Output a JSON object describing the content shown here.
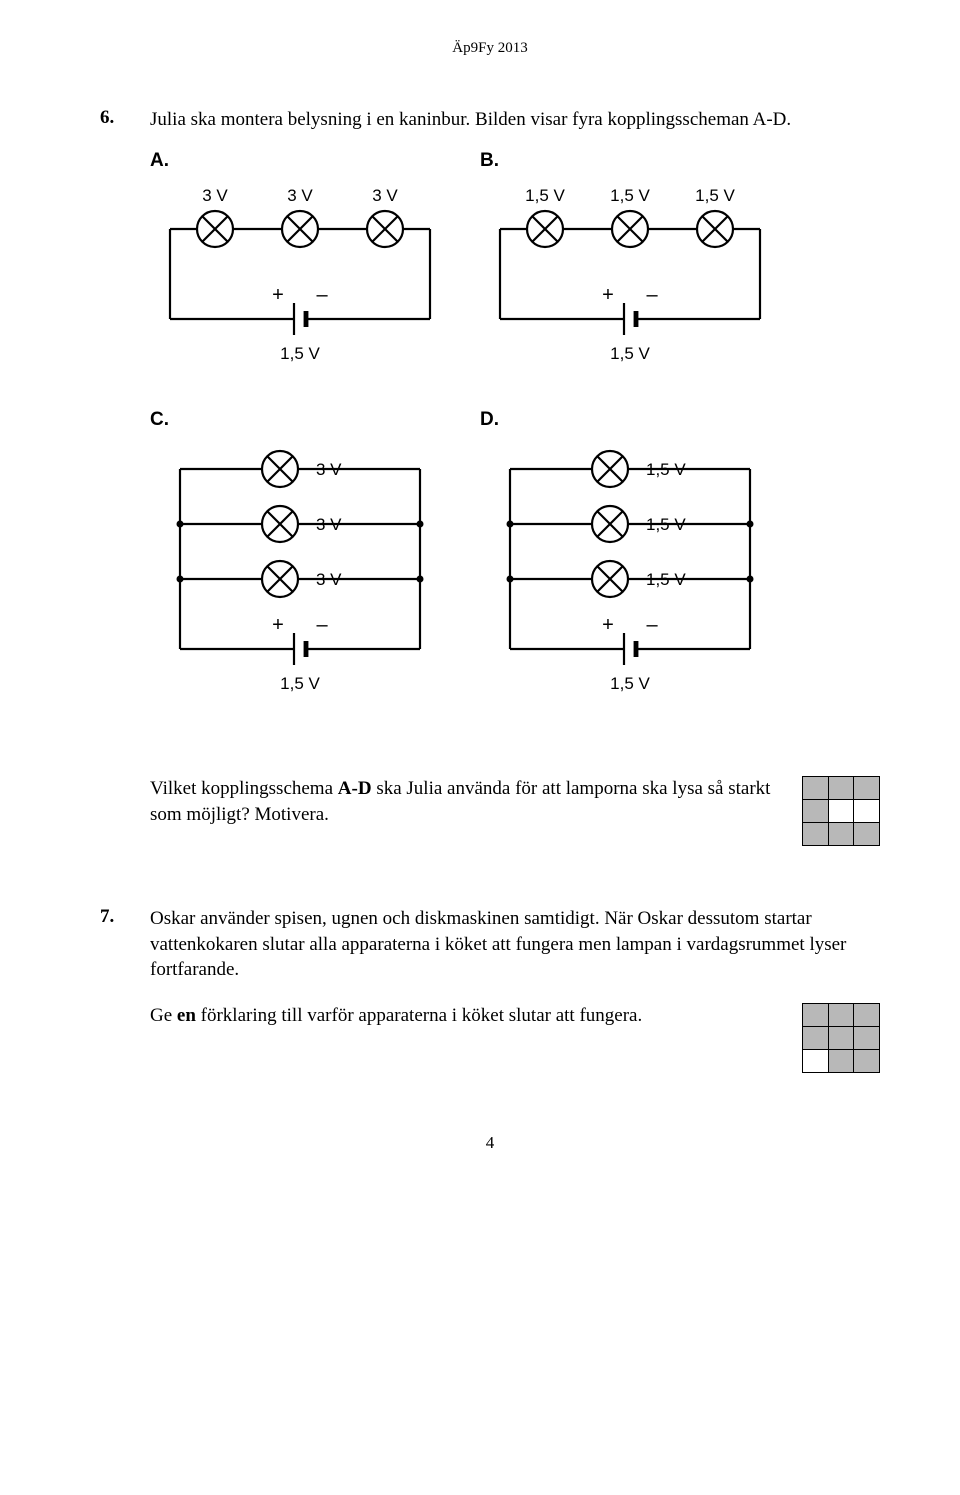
{
  "header": "Äp9Fy 2013",
  "page_number": "4",
  "q6": {
    "number": "6.",
    "intro": "Julia ska montera belysning i en kaninbur. Bilden visar fyra kopplingsscheman A-D.",
    "question_part1": "Vilket kopplingsschema ",
    "question_bold": "A-D",
    "question_part2": " ska Julia använda för att lamporna ska lysa så starkt som möjligt? Motivera.",
    "circuits": {
      "A": {
        "label": "A.",
        "lamp_values": [
          "3 V",
          "3 V",
          "3 V"
        ],
        "battery": "1,5 V"
      },
      "B": {
        "label": "B.",
        "lamp_values": [
          "1,5 V",
          "1,5 V",
          "1,5 V"
        ],
        "battery": "1,5 V"
      },
      "C": {
        "label": "C.",
        "lamp_values": [
          "3 V",
          "3 V",
          "3 V"
        ],
        "battery": "1,5 V"
      },
      "D": {
        "label": "D.",
        "lamp_values": [
          "1,5 V",
          "1,5 V",
          "1,5 V"
        ],
        "battery": "1,5 V"
      }
    },
    "style": {
      "stroke_color": "#000000",
      "stroke_width": 2.2,
      "lamp_radius": 18,
      "value_fontsize": 17,
      "polarity_fontsize": 20
    },
    "rubric_pattern": [
      [
        "shaded",
        "shaded",
        "shaded"
      ],
      [
        "shaded",
        "white",
        "white"
      ],
      [
        "shaded",
        "shaded",
        "shaded"
      ]
    ]
  },
  "q7": {
    "number": "7.",
    "text": "Oskar använder spisen, ugnen och diskmaskinen samtidigt. När Oskar dessutom startar vattenkokaren slutar alla apparaterna i köket att fungera men lampan i vardagsrummet lyser fortfarande.",
    "prompt_part1": "Ge ",
    "prompt_bold": "en",
    "prompt_part2": " förklaring till varför apparaterna i köket slutar att fungera.",
    "rubric_pattern": [
      [
        "shaded",
        "shaded",
        "shaded"
      ],
      [
        "shaded",
        "shaded",
        "shaded"
      ],
      [
        "white",
        "shaded",
        "shaded"
      ]
    ]
  }
}
